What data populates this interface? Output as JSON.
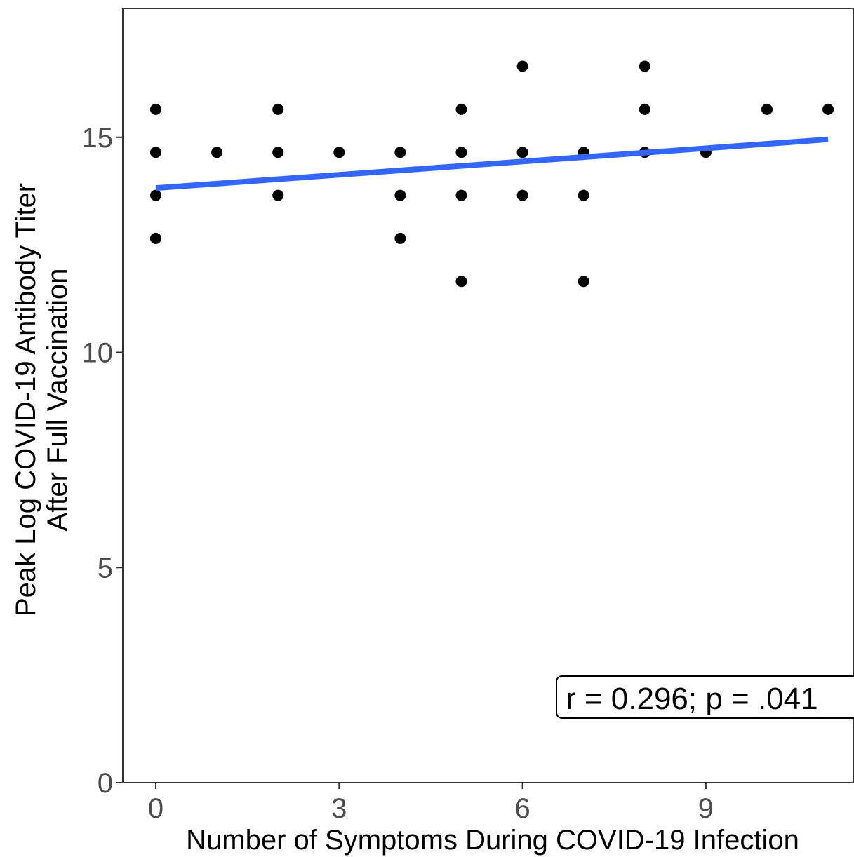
{
  "chart_data": {
    "type": "scatter",
    "xlabel": "Number of Symptoms During COVID-19 Infection",
    "ylabel_lines": [
      "Peak Log COVID-19 Antibody Titer",
      "After Full Vaccination"
    ],
    "xlim": [
      -0.5,
      11.5
    ],
    "ylim": [
      0,
      18
    ],
    "x_ticks": [
      0,
      3,
      6,
      9
    ],
    "y_ticks": [
      0,
      5,
      10,
      15
    ],
    "grid": false,
    "points": [
      {
        "x": 0,
        "y": 15.65
      },
      {
        "x": 0,
        "y": 14.65
      },
      {
        "x": 0,
        "y": 13.65
      },
      {
        "x": 0,
        "y": 12.65
      },
      {
        "x": 1,
        "y": 14.65
      },
      {
        "x": 2,
        "y": 15.65
      },
      {
        "x": 2,
        "y": 14.65
      },
      {
        "x": 2,
        "y": 13.65
      },
      {
        "x": 3,
        "y": 14.65
      },
      {
        "x": 4,
        "y": 14.65
      },
      {
        "x": 4,
        "y": 13.65
      },
      {
        "x": 4,
        "y": 12.65
      },
      {
        "x": 5,
        "y": 15.65
      },
      {
        "x": 5,
        "y": 14.65
      },
      {
        "x": 5,
        "y": 13.65
      },
      {
        "x": 5,
        "y": 11.65
      },
      {
        "x": 6,
        "y": 16.65
      },
      {
        "x": 6,
        "y": 14.65
      },
      {
        "x": 6,
        "y": 13.65
      },
      {
        "x": 7,
        "y": 14.65
      },
      {
        "x": 7,
        "y": 13.65
      },
      {
        "x": 7,
        "y": 11.65
      },
      {
        "x": 8,
        "y": 16.65
      },
      {
        "x": 8,
        "y": 15.65
      },
      {
        "x": 8,
        "y": 14.65
      },
      {
        "x": 9,
        "y": 14.65
      },
      {
        "x": 10,
        "y": 15.65
      },
      {
        "x": 11,
        "y": 15.65
      }
    ],
    "fit_line": {
      "x0": 0,
      "y0": 13.82,
      "x1": 11,
      "y1": 14.95
    },
    "annotation": "r = 0.296; p = .041",
    "colors": {
      "point": "#000000",
      "fit_line": "#3366ff",
      "axis": "#333333",
      "tick_label": "#4d4d4d"
    }
  }
}
